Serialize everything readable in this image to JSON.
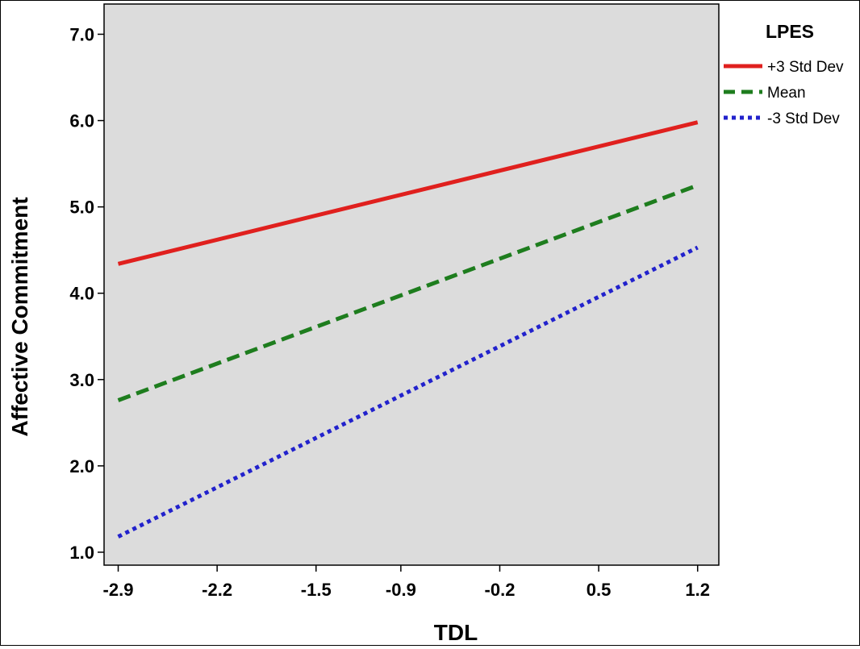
{
  "chart_data": {
    "type": "line",
    "xlabel": "TDL",
    "ylabel": "Affective Commitment",
    "x_ticks": [
      "-2.9",
      "-2.2",
      "-1.5",
      "-0.9",
      "-0.2",
      "0.5",
      "1.2"
    ],
    "y_ticks": [
      "1.0",
      "2.0",
      "3.0",
      "4.0",
      "5.0",
      "6.0",
      "7.0"
    ],
    "xlim": [
      -3.0,
      1.35
    ],
    "ylim": [
      0.85,
      7.35
    ],
    "grid": false,
    "legend": {
      "title": "LPES",
      "position": "right"
    },
    "background": "#dcdcdc",
    "series": [
      {
        "name": "+3 Std Dev",
        "color": "#e0201e",
        "dash": "solid",
        "x": [
          -2.9,
          1.2
        ],
        "y": [
          4.34,
          5.98
        ]
      },
      {
        "name": "Mean",
        "color": "#1e7d1e",
        "dash": "dashed",
        "x": [
          -2.9,
          1.2
        ],
        "y": [
          2.76,
          5.25
        ]
      },
      {
        "name": "-3 Std Dev",
        "color": "#2222cc",
        "dash": "dotted",
        "x": [
          -2.9,
          1.2
        ],
        "y": [
          1.18,
          4.53
        ]
      }
    ]
  }
}
